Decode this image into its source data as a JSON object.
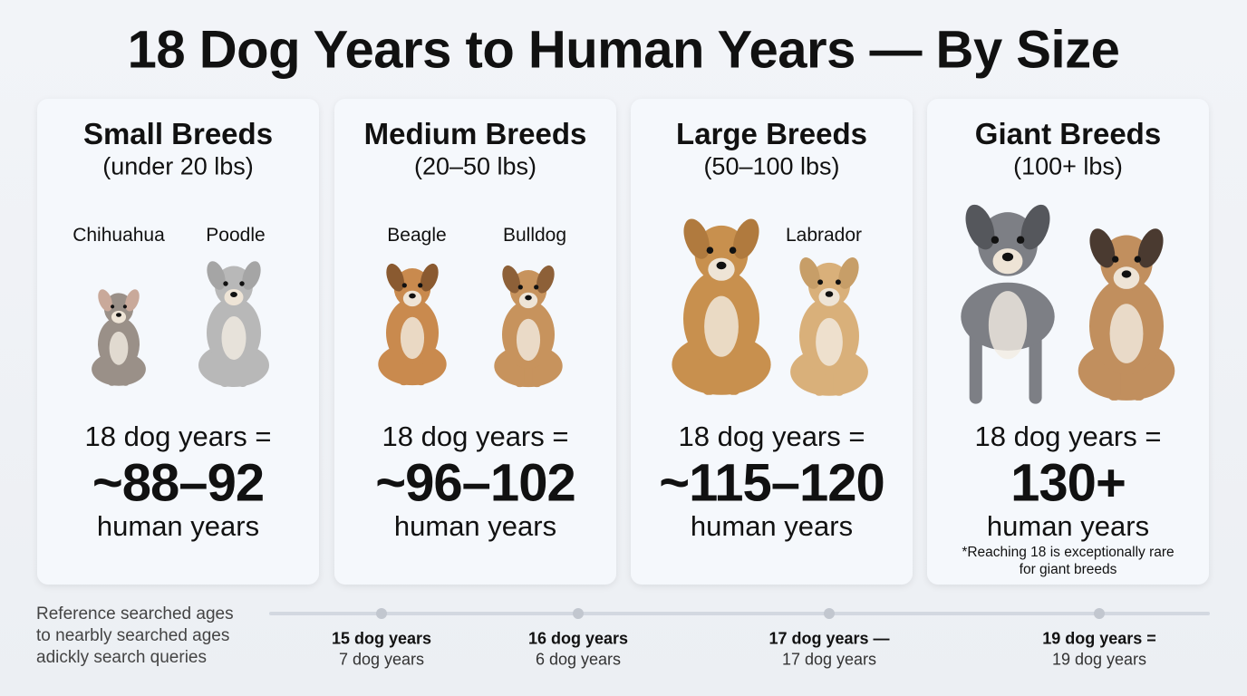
{
  "header": {
    "title": "18 Dog Years to Human Years — By Size"
  },
  "cards": [
    {
      "title": "Small Breeds",
      "subtitle": "(under 20 lbs)",
      "labels": [
        "Chihuahua",
        "Poodle"
      ],
      "equation": "18 dog years =",
      "value": "~88–92",
      "unit": "human years"
    },
    {
      "title": "Medium Breeds",
      "subtitle": "(20–50 lbs)",
      "labels": [
        "Beagle",
        "Bulldog"
      ],
      "equation": "18 dog years =",
      "value": "~96–102",
      "unit": "human years"
    },
    {
      "title": "Large Breeds",
      "subtitle": "(50–100 lbs)",
      "labels": [
        "Labrador"
      ],
      "equation": "18 dog years =",
      "value": "~115–120",
      "unit": "human years"
    },
    {
      "title": "Giant Breeds",
      "subtitle": "(100+ lbs)",
      "labels": [],
      "equation": "18 dog years =",
      "value": "130+",
      "unit": "human years",
      "note": [
        "*Reaching 18 is exceptionally rare",
        "for giant breeds"
      ]
    }
  ],
  "footer": {
    "lines": [
      "Reference searched ages",
      "to nearbly searched ages",
      "adickly search queries"
    ],
    "timeline": [
      {
        "top": "15 dog years",
        "bottom": "7 dog years"
      },
      {
        "top": "16 dog years",
        "bottom": "6 dog years"
      },
      {
        "top": "17 dog years —",
        "bottom": "17 dog years"
      },
      {
        "top": "19 dog years =",
        "bottom": "19 dog years"
      }
    ]
  }
}
